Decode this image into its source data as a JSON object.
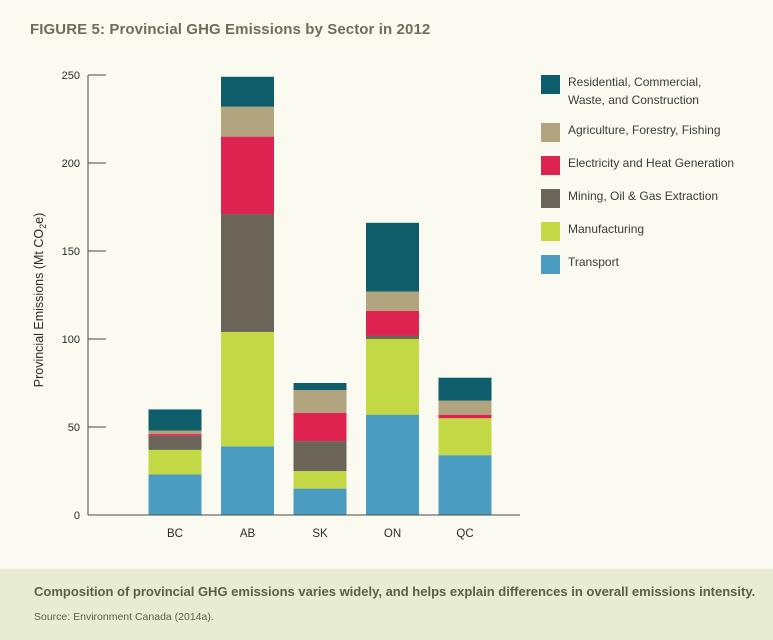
{
  "figure": {
    "title": "FIGURE 5: Provincial GHG Emissions by Sector in 2012",
    "caption": "Composition of provincial GHG emissions varies widely, and helps explain differences in overall emissions intensity.",
    "source": "Source: Environment Canada (2014a)."
  },
  "chart_data": {
    "type": "bar",
    "stacked": true,
    "title": "",
    "xlabel": "",
    "ylabel_prefix": "Provincial Emissions (Mt CO",
    "ylabel_sub": "2",
    "ylabel_suffix": "e)",
    "ylim": [
      0,
      250
    ],
    "yticks": [
      0,
      50,
      100,
      150,
      200,
      250
    ],
    "grid": false,
    "legend_position": "right",
    "categories": [
      "BC",
      "AB",
      "SK",
      "ON",
      "QC"
    ],
    "series": [
      {
        "name": "Transport",
        "color": "#4a9cc1",
        "values": [
          23,
          39,
          15,
          57,
          34
        ]
      },
      {
        "name": "Manufacturing",
        "color": "#c3d845",
        "values": [
          14,
          65,
          10,
          43,
          21
        ]
      },
      {
        "name": "Mining, Oil & Gas Extraction",
        "color": "#6b6458",
        "values": [
          8,
          67,
          17,
          2,
          0
        ]
      },
      {
        "name": "Electricity and Heat Generation",
        "color": "#df2351",
        "values": [
          1,
          44,
          16,
          14,
          2
        ]
      },
      {
        "name": "Agriculture, Forestry, Fishing",
        "color": "#b1a47e",
        "values": [
          2,
          17,
          13,
          11,
          8
        ]
      },
      {
        "name": "Residential, Commercial, Waste, and Construction",
        "color": "#0e5d6b",
        "values": [
          12,
          17,
          4,
          39,
          13
        ]
      }
    ]
  },
  "legend": [
    {
      "line1": "Residential, Commercial,",
      "line2": "Waste, and Construction",
      "color": "#0e5d6b"
    },
    {
      "line1": "Agriculture, Forestry, Fishing",
      "line2": "",
      "color": "#b1a47e"
    },
    {
      "line1": "Electricity and Heat Generation",
      "line2": "",
      "color": "#df2351"
    },
    {
      "line1": "Mining, Oil & Gas Extraction",
      "line2": "",
      "color": "#6b6458"
    },
    {
      "line1": "Manufacturing",
      "line2": "",
      "color": "#c3d845"
    },
    {
      "line1": "Transport",
      "line2": "",
      "color": "#4a9cc1"
    }
  ]
}
